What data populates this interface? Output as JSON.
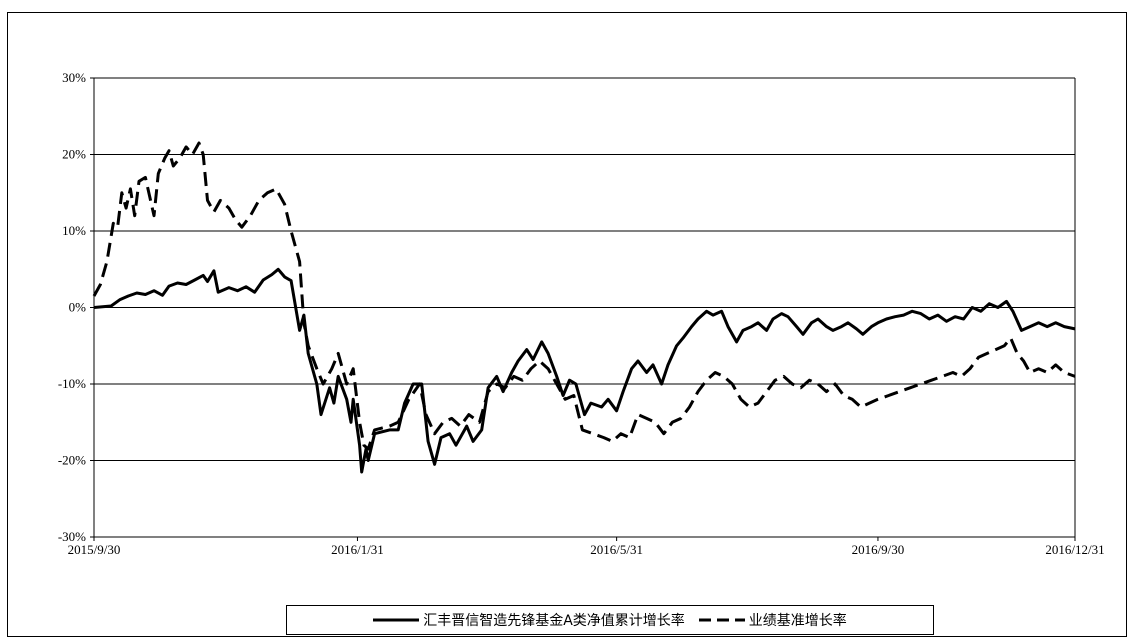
{
  "chart_data": {
    "type": "line",
    "xlabel": "",
    "ylabel": "",
    "ylim": [
      -30,
      30
    ],
    "yticks": [
      {
        "v": 30,
        "label": "30%"
      },
      {
        "v": 20,
        "label": "20%"
      },
      {
        "v": 10,
        "label": "10%"
      },
      {
        "v": 0,
        "label": "0%"
      },
      {
        "v": -10,
        "label": "-10%"
      },
      {
        "v": -20,
        "label": "-20%"
      },
      {
        "v": -30,
        "label": "-30%"
      }
    ],
    "xticks": [
      {
        "date": "2015-09-30",
        "label": "2015/9/30"
      },
      {
        "date": "2016-01-31",
        "label": "2016/1/31"
      },
      {
        "date": "2016-05-31",
        "label": "2016/5/31"
      },
      {
        "date": "2016-09-30",
        "label": "2016/9/30"
      },
      {
        "date": "2016-12-31",
        "label": "2016/12/31"
      }
    ],
    "xlim": [
      "2015-09-30",
      "2016-12-31"
    ],
    "grid": "horizontal",
    "legend_position": "bottom",
    "series": [
      {
        "name": "汇丰晋信智造先锋基金A类净值累计增长率",
        "style": "solid",
        "color": "#000000",
        "points": [
          [
            "2015-09-30",
            0.0
          ],
          [
            "2015-10-08",
            0.2
          ],
          [
            "2015-10-12",
            1.0
          ],
          [
            "2015-10-16",
            1.5
          ],
          [
            "2015-10-20",
            1.9
          ],
          [
            "2015-10-24",
            1.7
          ],
          [
            "2015-10-28",
            2.2
          ],
          [
            "2015-11-01",
            1.6
          ],
          [
            "2015-11-04",
            2.8
          ],
          [
            "2015-11-08",
            3.2
          ],
          [
            "2015-11-12",
            3.0
          ],
          [
            "2015-11-16",
            3.6
          ],
          [
            "2015-11-20",
            4.2
          ],
          [
            "2015-11-22",
            3.4
          ],
          [
            "2015-11-25",
            4.8
          ],
          [
            "2015-11-27",
            2.0
          ],
          [
            "2015-12-02",
            2.6
          ],
          [
            "2015-12-06",
            2.2
          ],
          [
            "2015-12-10",
            2.7
          ],
          [
            "2015-12-14",
            2.0
          ],
          [
            "2015-12-18",
            3.6
          ],
          [
            "2015-12-22",
            4.3
          ],
          [
            "2015-12-25",
            5.0
          ],
          [
            "2015-12-28",
            4.0
          ],
          [
            "2015-12-31",
            3.5
          ],
          [
            "2016-01-04",
            -3.0
          ],
          [
            "2016-01-06",
            -1.0
          ],
          [
            "2016-01-08",
            -6.0
          ],
          [
            "2016-01-12",
            -10.0
          ],
          [
            "2016-01-14",
            -14.0
          ],
          [
            "2016-01-18",
            -10.5
          ],
          [
            "2016-01-20",
            -12.5
          ],
          [
            "2016-01-22",
            -9.0
          ],
          [
            "2016-01-26",
            -12.0
          ],
          [
            "2016-01-28",
            -15.0
          ],
          [
            "2016-01-29",
            -12.0
          ],
          [
            "2016-02-01",
            -18.0
          ],
          [
            "2016-02-02",
            -21.5
          ],
          [
            "2016-02-04",
            -18.5
          ],
          [
            "2016-02-05",
            -20.0
          ],
          [
            "2016-02-08",
            -16.5
          ],
          [
            "2016-02-15",
            -16.0
          ],
          [
            "2016-02-19",
            -16.0
          ],
          [
            "2016-02-22",
            -12.5
          ],
          [
            "2016-02-26",
            -10.0
          ],
          [
            "2016-03-01",
            -10.0
          ],
          [
            "2016-03-03",
            -15.0
          ],
          [
            "2016-03-04",
            -17.5
          ],
          [
            "2016-03-07",
            -20.5
          ],
          [
            "2016-03-10",
            -17.0
          ],
          [
            "2016-03-14",
            -16.5
          ],
          [
            "2016-03-17",
            -18.0
          ],
          [
            "2016-03-22",
            -15.5
          ],
          [
            "2016-03-25",
            -17.5
          ],
          [
            "2016-03-29",
            -16.0
          ],
          [
            "2016-04-01",
            -10.5
          ],
          [
            "2016-04-05",
            -9.0
          ],
          [
            "2016-04-08",
            -11.0
          ],
          [
            "2016-04-12",
            -8.5
          ],
          [
            "2016-04-15",
            -7.0
          ],
          [
            "2016-04-19",
            -5.5
          ],
          [
            "2016-04-22",
            -6.8
          ],
          [
            "2016-04-26",
            -4.5
          ],
          [
            "2016-04-29",
            -6.0
          ],
          [
            "2016-05-03",
            -9.0
          ],
          [
            "2016-05-06",
            -11.5
          ],
          [
            "2016-05-09",
            -9.5
          ],
          [
            "2016-05-12",
            -10.0
          ],
          [
            "2016-05-16",
            -14.0
          ],
          [
            "2016-05-19",
            -12.5
          ],
          [
            "2016-05-24",
            -13.0
          ],
          [
            "2016-05-27",
            -12.0
          ],
          [
            "2016-05-31",
            -13.5
          ],
          [
            "2016-06-03",
            -11.0
          ],
          [
            "2016-06-07",
            -8.0
          ],
          [
            "2016-06-10",
            -7.0
          ],
          [
            "2016-06-14",
            -8.5
          ],
          [
            "2016-06-17",
            -7.5
          ],
          [
            "2016-06-21",
            -10.0
          ],
          [
            "2016-06-24",
            -7.5
          ],
          [
            "2016-06-28",
            -5.0
          ],
          [
            "2016-07-01",
            -4.0
          ],
          [
            "2016-07-05",
            -2.5
          ],
          [
            "2016-07-08",
            -1.5
          ],
          [
            "2016-07-12",
            -0.5
          ],
          [
            "2016-07-15",
            -1.0
          ],
          [
            "2016-07-19",
            -0.5
          ],
          [
            "2016-07-22",
            -2.5
          ],
          [
            "2016-07-26",
            -4.5
          ],
          [
            "2016-07-29",
            -3.0
          ],
          [
            "2016-08-02",
            -2.5
          ],
          [
            "2016-08-05",
            -2.0
          ],
          [
            "2016-08-09",
            -3.0
          ],
          [
            "2016-08-12",
            -1.5
          ],
          [
            "2016-08-16",
            -0.8
          ],
          [
            "2016-08-19",
            -1.2
          ],
          [
            "2016-08-23",
            -2.5
          ],
          [
            "2016-08-26",
            -3.5
          ],
          [
            "2016-08-30",
            -2.0
          ],
          [
            "2016-09-02",
            -1.5
          ],
          [
            "2016-09-06",
            -2.5
          ],
          [
            "2016-09-09",
            -3.0
          ],
          [
            "2016-09-13",
            -2.5
          ],
          [
            "2016-09-16",
            -2.0
          ],
          [
            "2016-09-20",
            -2.8
          ],
          [
            "2016-09-23",
            -3.5
          ],
          [
            "2016-09-27",
            -2.5
          ],
          [
            "2016-09-30",
            -2.0
          ],
          [
            "2016-10-04",
            -1.5
          ],
          [
            "2016-10-08",
            -1.2
          ],
          [
            "2016-10-12",
            -1.0
          ],
          [
            "2016-10-16",
            -0.5
          ],
          [
            "2016-10-20",
            -0.8
          ],
          [
            "2016-10-24",
            -1.5
          ],
          [
            "2016-10-28",
            -1.0
          ],
          [
            "2016-11-01",
            -1.8
          ],
          [
            "2016-11-05",
            -1.2
          ],
          [
            "2016-11-09",
            -1.5
          ],
          [
            "2016-11-13",
            0.0
          ],
          [
            "2016-11-17",
            -0.5
          ],
          [
            "2016-11-21",
            0.5
          ],
          [
            "2016-11-25",
            0.0
          ],
          [
            "2016-11-29",
            0.8
          ],
          [
            "2016-12-02",
            -0.5
          ],
          [
            "2016-12-06",
            -3.0
          ],
          [
            "2016-12-10",
            -2.5
          ],
          [
            "2016-12-14",
            -2.0
          ],
          [
            "2016-12-18",
            -2.5
          ],
          [
            "2016-12-22",
            -2.0
          ],
          [
            "2016-12-26",
            -2.5
          ],
          [
            "2016-12-31",
            -2.8
          ]
        ]
      },
      {
        "name": "业绩基准增长率",
        "style": "dashed",
        "color": "#000000",
        "points": [
          [
            "2015-09-30",
            1.5
          ],
          [
            "2015-10-03",
            3.0
          ],
          [
            "2015-10-06",
            6.0
          ],
          [
            "2015-10-09",
            11.0
          ],
          [
            "2015-10-11",
            10.5
          ],
          [
            "2015-10-13",
            15.0
          ],
          [
            "2015-10-15",
            13.0
          ],
          [
            "2015-10-17",
            15.5
          ],
          [
            "2015-10-19",
            12.0
          ],
          [
            "2015-10-21",
            16.5
          ],
          [
            "2015-10-24",
            17.0
          ],
          [
            "2015-10-26",
            14.5
          ],
          [
            "2015-10-28",
            12.0
          ],
          [
            "2015-10-30",
            17.5
          ],
          [
            "2015-11-02",
            19.5
          ],
          [
            "2015-11-04",
            20.5
          ],
          [
            "2015-11-06",
            18.5
          ],
          [
            "2015-11-09",
            19.5
          ],
          [
            "2015-11-12",
            21.0
          ],
          [
            "2015-11-15",
            20.0
          ],
          [
            "2015-11-18",
            21.5
          ],
          [
            "2015-11-20",
            20.0
          ],
          [
            "2015-11-22",
            14.0
          ],
          [
            "2015-11-25",
            12.5
          ],
          [
            "2015-11-28",
            14.0
          ],
          [
            "2015-12-02",
            13.0
          ],
          [
            "2015-12-05",
            11.5
          ],
          [
            "2015-12-08",
            10.5
          ],
          [
            "2015-12-12",
            12.0
          ],
          [
            "2015-12-16",
            14.0
          ],
          [
            "2015-12-20",
            15.0
          ],
          [
            "2015-12-24",
            15.5
          ],
          [
            "2015-12-28",
            13.5
          ],
          [
            "2015-12-31",
            10.0
          ],
          [
            "2016-01-04",
            6.0
          ],
          [
            "2016-01-06",
            -2.0
          ],
          [
            "2016-01-08",
            -5.0
          ],
          [
            "2016-01-12",
            -8.0
          ],
          [
            "2016-01-15",
            -10.0
          ],
          [
            "2016-01-19",
            -8.0
          ],
          [
            "2016-01-22",
            -6.0
          ],
          [
            "2016-01-26",
            -10.0
          ],
          [
            "2016-01-29",
            -8.0
          ],
          [
            "2016-02-01",
            -15.0
          ],
          [
            "2016-02-03",
            -18.0
          ],
          [
            "2016-02-05",
            -18.5
          ],
          [
            "2016-02-08",
            -16.0
          ],
          [
            "2016-02-15",
            -15.5
          ],
          [
            "2016-02-19",
            -15.0
          ],
          [
            "2016-02-24",
            -12.0
          ],
          [
            "2016-02-29",
            -10.0
          ],
          [
            "2016-03-03",
            -14.0
          ],
          [
            "2016-03-07",
            -16.5
          ],
          [
            "2016-03-11",
            -15.0
          ],
          [
            "2016-03-15",
            -14.5
          ],
          [
            "2016-03-19",
            -15.5
          ],
          [
            "2016-03-23",
            -14.0
          ],
          [
            "2016-03-28",
            -15.0
          ],
          [
            "2016-04-01",
            -11.0
          ],
          [
            "2016-04-05",
            -10.0
          ],
          [
            "2016-04-09",
            -10.5
          ],
          [
            "2016-04-13",
            -9.0
          ],
          [
            "2016-04-17",
            -9.5
          ],
          [
            "2016-04-21",
            -8.0
          ],
          [
            "2016-04-25",
            -7.0
          ],
          [
            "2016-04-29",
            -8.0
          ],
          [
            "2016-05-03",
            -10.0
          ],
          [
            "2016-05-07",
            -12.0
          ],
          [
            "2016-05-11",
            -11.5
          ],
          [
            "2016-05-15",
            -16.0
          ],
          [
            "2016-05-20",
            -16.5
          ],
          [
            "2016-05-25",
            -17.0
          ],
          [
            "2016-05-29",
            -17.5
          ],
          [
            "2016-06-02",
            -16.5
          ],
          [
            "2016-06-06",
            -17.0
          ],
          [
            "2016-06-10",
            -14.0
          ],
          [
            "2016-06-14",
            -14.5
          ],
          [
            "2016-06-18",
            -15.0
          ],
          [
            "2016-06-22",
            -16.5
          ],
          [
            "2016-06-26",
            -15.0
          ],
          [
            "2016-06-30",
            -14.5
          ],
          [
            "2016-07-04",
            -13.0
          ],
          [
            "2016-07-08",
            -11.0
          ],
          [
            "2016-07-12",
            -9.5
          ],
          [
            "2016-07-16",
            -8.5
          ],
          [
            "2016-07-20",
            -9.0
          ],
          [
            "2016-07-24",
            -10.0
          ],
          [
            "2016-07-28",
            -12.0
          ],
          [
            "2016-08-01",
            -13.0
          ],
          [
            "2016-08-05",
            -12.5
          ],
          [
            "2016-08-09",
            -11.0
          ],
          [
            "2016-08-13",
            -9.5
          ],
          [
            "2016-08-17",
            -9.0
          ],
          [
            "2016-08-21",
            -10.0
          ],
          [
            "2016-08-25",
            -10.5
          ],
          [
            "2016-08-29",
            -9.5
          ],
          [
            "2016-09-02",
            -10.0
          ],
          [
            "2016-09-06",
            -11.0
          ],
          [
            "2016-09-10",
            -10.0
          ],
          [
            "2016-09-14",
            -11.5
          ],
          [
            "2016-09-18",
            -12.0
          ],
          [
            "2016-09-22",
            -13.0
          ],
          [
            "2016-09-26",
            -12.5
          ],
          [
            "2016-09-30",
            -12.0
          ],
          [
            "2016-10-05",
            -11.5
          ],
          [
            "2016-10-10",
            -11.0
          ],
          [
            "2016-10-15",
            -10.5
          ],
          [
            "2016-10-20",
            -10.0
          ],
          [
            "2016-10-25",
            -9.5
          ],
          [
            "2016-10-30",
            -9.0
          ],
          [
            "2016-11-04",
            -8.5
          ],
          [
            "2016-11-08",
            -9.0
          ],
          [
            "2016-11-12",
            -8.0
          ],
          [
            "2016-11-16",
            -6.5
          ],
          [
            "2016-11-20",
            -6.0
          ],
          [
            "2016-11-24",
            -5.5
          ],
          [
            "2016-11-28",
            -5.0
          ],
          [
            "2016-12-01",
            -4.0
          ],
          [
            "2016-12-04",
            -6.0
          ],
          [
            "2016-12-07",
            -7.0
          ],
          [
            "2016-12-10",
            -8.5
          ],
          [
            "2016-12-14",
            -8.0
          ],
          [
            "2016-12-18",
            -8.5
          ],
          [
            "2016-12-22",
            -7.5
          ],
          [
            "2016-12-26",
            -8.5
          ],
          [
            "2016-12-31",
            -9.0
          ]
        ]
      }
    ]
  }
}
